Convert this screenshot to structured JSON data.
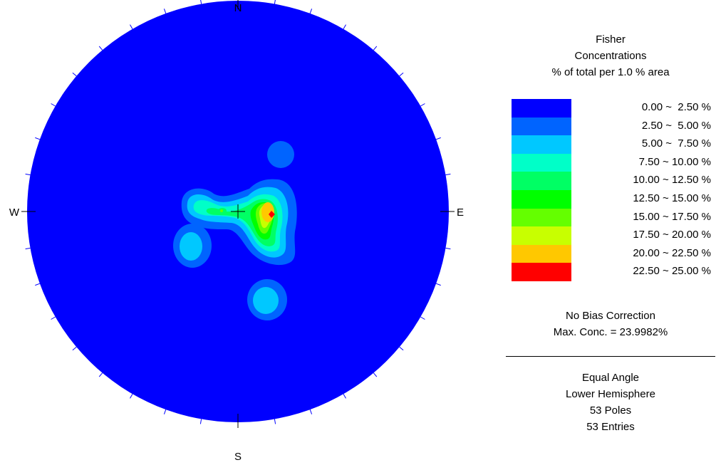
{
  "legend": {
    "title_lines": [
      "Fisher",
      "Concentrations",
      "% of total per 1.0 % area"
    ],
    "bins": [
      {
        "label": "0.00 ~  2.50 %",
        "color": "#0000ff"
      },
      {
        "label": "2.50 ~  5.00 %",
        "color": "#0064ff"
      },
      {
        "label": "5.00 ~  7.50 %",
        "color": "#00c8ff"
      },
      {
        "label": "7.50 ~ 10.00 %",
        "color": "#00ffc8"
      },
      {
        "label": "10.00 ~ 12.50 %",
        "color": "#00ff64"
      },
      {
        "label": "12.50 ~ 15.00 %",
        "color": "#00ff00"
      },
      {
        "label": "15.00 ~ 17.50 %",
        "color": "#64ff00"
      },
      {
        "label": "17.50 ~ 20.00 %",
        "color": "#c8ff00"
      },
      {
        "label": "20.00 ~ 22.50 %",
        "color": "#ffc800"
      },
      {
        "label": "22.50 ~ 25.00 %",
        "color": "#ff0000"
      }
    ]
  },
  "stats": {
    "bias": "No Bias Correction",
    "max_conc": "Max. Conc. = 23.9982%"
  },
  "projection": {
    "lines": [
      "Equal Angle",
      "Lower Hemisphere",
      "53 Poles",
      "53 Entries"
    ]
  },
  "compass": {
    "north": "N",
    "south": "S",
    "east": "E",
    "west": "W"
  }
}
